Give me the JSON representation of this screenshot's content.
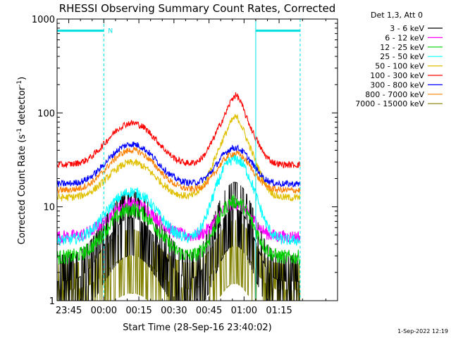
{
  "chart_data": {
    "type": "line",
    "title": "RHESSI Observing Summary Count Rates, Corrected",
    "xlabel": "Start Time (28-Sep-16 23:40:02)",
    "ylabel_main": "Corrected Count Rate (s",
    "ylabel_sup1": "-1",
    "ylabel_mid": " detector",
    "ylabel_sup2": "-1",
    "ylabel_end": ")",
    "yscale": "log",
    "ylim": [
      1,
      1000
    ],
    "xlim_min": [
      -20,
      100
    ],
    "x_ticks": [
      {
        "label": "23:45",
        "min": -15
      },
      {
        "label": "00:00",
        "min": 0
      },
      {
        "label": "00:15",
        "min": 15
      },
      {
        "label": "00:30",
        "min": 30
      },
      {
        "label": "00:45",
        "min": 45
      },
      {
        "label": "01:00",
        "min": 60
      },
      {
        "label": "01:15",
        "min": 75
      }
    ],
    "y_ticks": [
      {
        "label": "1",
        "value": 1
      },
      {
        "label": "10",
        "value": 10
      },
      {
        "label": "100",
        "value": 100
      },
      {
        "label": "1000",
        "value": 1000
      }
    ],
    "legend_header": "Det 1,3, Att 0",
    "legend_position": "top-right",
    "series": [
      {
        "name": "3 - 6 keV",
        "color": "#000000",
        "base": 1.6,
        "amp1": 6,
        "amp2": 8,
        "noise": 0.45
      },
      {
        "name": "6 - 12 keV",
        "color": "#ff00ff",
        "base": 4.8,
        "amp1": 6,
        "amp2": 6,
        "noise": 0.07
      },
      {
        "name": "12 - 25 keV",
        "color": "#00d000",
        "base": 2.9,
        "amp1": 6.5,
        "amp2": 8.5,
        "noise": 0.08
      },
      {
        "name": "25 - 50 keV",
        "color": "#00ffff",
        "base": 4.4,
        "amp1": 10,
        "amp2": 28,
        "noise": 0.06
      },
      {
        "name": "50 - 100 keV",
        "color": "#e0c000",
        "base": 12.5,
        "amp1": 17,
        "amp2": 55,
        "noise": 0.04
      },
      {
        "name": "100 - 300 keV",
        "color": "#ff0000",
        "base": 28,
        "amp1": 50,
        "amp2": 80,
        "noise": 0.035
      },
      {
        "name": "300 - 800 keV",
        "color": "#0000ff",
        "base": 17.5,
        "amp1": 29,
        "amp2": 25,
        "noise": 0.035
      },
      {
        "name": "800 - 7000 keV",
        "color": "#ff8000",
        "base": 15,
        "amp1": 25,
        "amp2": 22,
        "noise": 0.035
      },
      {
        "name": "7000 - 15000 keV",
        "color": "#808000",
        "base": 1.3,
        "amp1": 1.7,
        "amp2": 2.5,
        "noise": 0.5
      }
    ],
    "flags": {
      "label": "N",
      "night_intervals_min": [
        [
          -20,
          0
        ],
        [
          65,
          84
        ]
      ],
      "color": "#00e0e0"
    },
    "vlines_min": [
      -20,
      0,
      65,
      84
    ],
    "data_span_min": [
      -20,
      84
    ],
    "peak1_center_min": 12,
    "peak2_center_min": 56
  },
  "footer": {
    "timestamp": "1-Sep-2022 12:19"
  }
}
